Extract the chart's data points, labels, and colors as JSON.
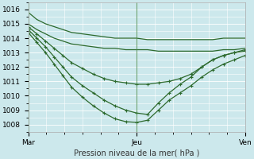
{
  "title": "Pression niveau de la mer( hPa )",
  "bg_color": "#cce8ec",
  "grid_color": "#ffffff",
  "line_color": "#2d6a2d",
  "ylim": [
    1007.5,
    1016.5
  ],
  "xtick_labels": [
    "Mar",
    "Jeu",
    "Ven"
  ],
  "xtick_positions": [
    0,
    0.5,
    1.0
  ],
  "ytick_values": [
    1008,
    1009,
    1010,
    1011,
    1012,
    1013,
    1014,
    1015,
    1016
  ],
  "lines": [
    {
      "x": [
        0.0,
        0.04,
        0.08,
        0.12,
        0.16,
        0.2,
        0.25,
        0.3,
        0.35,
        0.4,
        0.45,
        0.5,
        0.55,
        0.6,
        0.65,
        0.7,
        0.75,
        0.8,
        0.85,
        0.9,
        0.95,
        1.0
      ],
      "y": [
        1015.8,
        1015.3,
        1015.0,
        1014.8,
        1014.6,
        1014.4,
        1014.3,
        1014.2,
        1014.1,
        1014.0,
        1014.0,
        1014.0,
        1013.9,
        1013.9,
        1013.9,
        1013.9,
        1013.9,
        1013.9,
        1013.9,
        1014.0,
        1014.0,
        1014.0
      ],
      "marker": false
    },
    {
      "x": [
        0.0,
        0.04,
        0.08,
        0.12,
        0.16,
        0.2,
        0.25,
        0.3,
        0.35,
        0.4,
        0.45,
        0.5,
        0.55,
        0.6,
        0.65,
        0.7,
        0.75,
        0.8,
        0.85,
        0.9,
        0.95,
        1.0
      ],
      "y": [
        1015.0,
        1014.6,
        1014.3,
        1014.0,
        1013.8,
        1013.6,
        1013.5,
        1013.4,
        1013.3,
        1013.3,
        1013.2,
        1013.2,
        1013.2,
        1013.1,
        1013.1,
        1013.1,
        1013.1,
        1013.1,
        1013.1,
        1013.2,
        1013.2,
        1013.3
      ],
      "marker": false
    },
    {
      "x": [
        0.0,
        0.04,
        0.08,
        0.12,
        0.16,
        0.2,
        0.25,
        0.3,
        0.35,
        0.4,
        0.45,
        0.5,
        0.55,
        0.6,
        0.65,
        0.7,
        0.75,
        0.8,
        0.85,
        0.9,
        0.95,
        1.0
      ],
      "y": [
        1014.8,
        1014.3,
        1013.8,
        1013.3,
        1012.8,
        1012.3,
        1011.9,
        1011.5,
        1011.2,
        1011.0,
        1010.9,
        1010.8,
        1010.8,
        1010.9,
        1011.0,
        1011.2,
        1011.5,
        1012.0,
        1012.5,
        1012.8,
        1013.0,
        1013.2
      ],
      "marker": true
    },
    {
      "x": [
        0.0,
        0.04,
        0.08,
        0.12,
        0.16,
        0.2,
        0.25,
        0.3,
        0.35,
        0.4,
        0.45,
        0.5,
        0.55,
        0.6,
        0.65,
        0.7,
        0.75,
        0.8,
        0.85,
        0.9,
        0.95,
        1.0
      ],
      "y": [
        1014.6,
        1014.0,
        1013.4,
        1012.7,
        1012.0,
        1011.3,
        1010.7,
        1010.2,
        1009.7,
        1009.3,
        1009.0,
        1008.8,
        1008.7,
        1009.5,
        1010.2,
        1010.8,
        1011.3,
        1012.0,
        1012.5,
        1012.8,
        1013.0,
        1013.1
      ],
      "marker": true
    },
    {
      "x": [
        0.0,
        0.04,
        0.08,
        0.12,
        0.16,
        0.2,
        0.25,
        0.3,
        0.35,
        0.4,
        0.45,
        0.5,
        0.55,
        0.6,
        0.65,
        0.7,
        0.75,
        0.8,
        0.85,
        0.9,
        0.95,
        1.0
      ],
      "y": [
        1014.4,
        1013.7,
        1013.0,
        1012.2,
        1011.4,
        1010.6,
        1009.9,
        1009.3,
        1008.8,
        1008.4,
        1008.2,
        1008.15,
        1008.3,
        1009.0,
        1009.7,
        1010.2,
        1010.7,
        1011.3,
        1011.8,
        1012.2,
        1012.5,
        1012.8
      ],
      "marker": true
    }
  ],
  "marker_symbol": "+",
  "marker_size": 3,
  "linewidth": 0.9,
  "figsize": [
    3.2,
    2.0
  ],
  "dpi": 100
}
